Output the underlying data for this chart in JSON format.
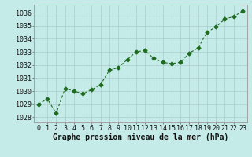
{
  "x": [
    0,
    1,
    2,
    3,
    4,
    5,
    6,
    7,
    8,
    9,
    10,
    11,
    12,
    13,
    14,
    15,
    16,
    17,
    18,
    19,
    20,
    21,
    22,
    23
  ],
  "y": [
    1029.0,
    1029.4,
    1028.3,
    1030.2,
    1030.0,
    1029.8,
    1030.1,
    1030.5,
    1031.6,
    1031.8,
    1032.4,
    1033.0,
    1033.1,
    1032.5,
    1032.2,
    1032.1,
    1032.2,
    1032.9,
    1033.3,
    1034.5,
    1034.9,
    1035.5,
    1035.7,
    1036.1
  ],
  "line_color": "#1f6b1f",
  "marker": "D",
  "marker_size": 2.5,
  "bg_color": "#c5ebe8",
  "grid_color": "#aacccc",
  "ylabel_ticks": [
    1028,
    1029,
    1030,
    1031,
    1032,
    1033,
    1034,
    1035,
    1036
  ],
  "xlabel": "Graphe pression niveau de la mer (hPa)",
  "xlabel_fontsize": 7,
  "tick_fontsize": 6,
  "ylim": [
    1027.6,
    1036.6
  ],
  "xlim": [
    -0.5,
    23.5
  ]
}
